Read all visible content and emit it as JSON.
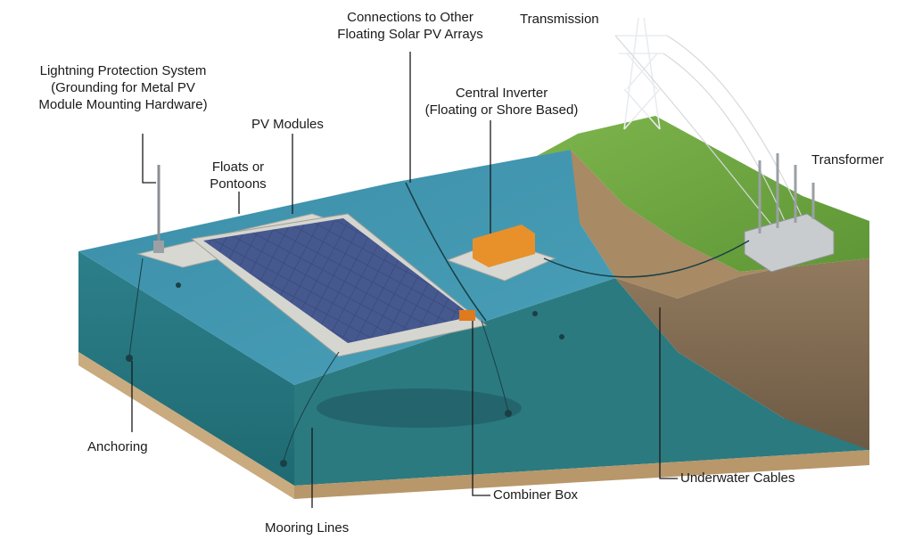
{
  "colors": {
    "water_surface": "#3f93ad",
    "water_body": "#2f7f86",
    "grass": "#6fa542",
    "soil": "#8a7358",
    "sand_base": "#c9ab7f",
    "panel": "#3c4d82",
    "float": "#d8d8d2",
    "inverter": "#e8912a",
    "callout_line": "#1a1a1a"
  },
  "labels": {
    "lightning": [
      "Lightning Protection System",
      "(Grounding for Metal PV",
      "Module Mounting Hardware)"
    ],
    "connections": [
      "Connections to Other",
      "Floating Solar PV Arrays"
    ],
    "transmission": "Transmission",
    "central_inverter": [
      "Central Inverter",
      "(Floating or Shore Based)"
    ],
    "pv_modules": "PV Modules",
    "floats": [
      "Floats or",
      "Pontoons"
    ],
    "transformer": "Transformer",
    "anchoring": "Anchoring",
    "combiner_box": "Combiner Box",
    "underwater_cables": "Underwater Cables",
    "mooring_lines": "Mooring Lines"
  }
}
